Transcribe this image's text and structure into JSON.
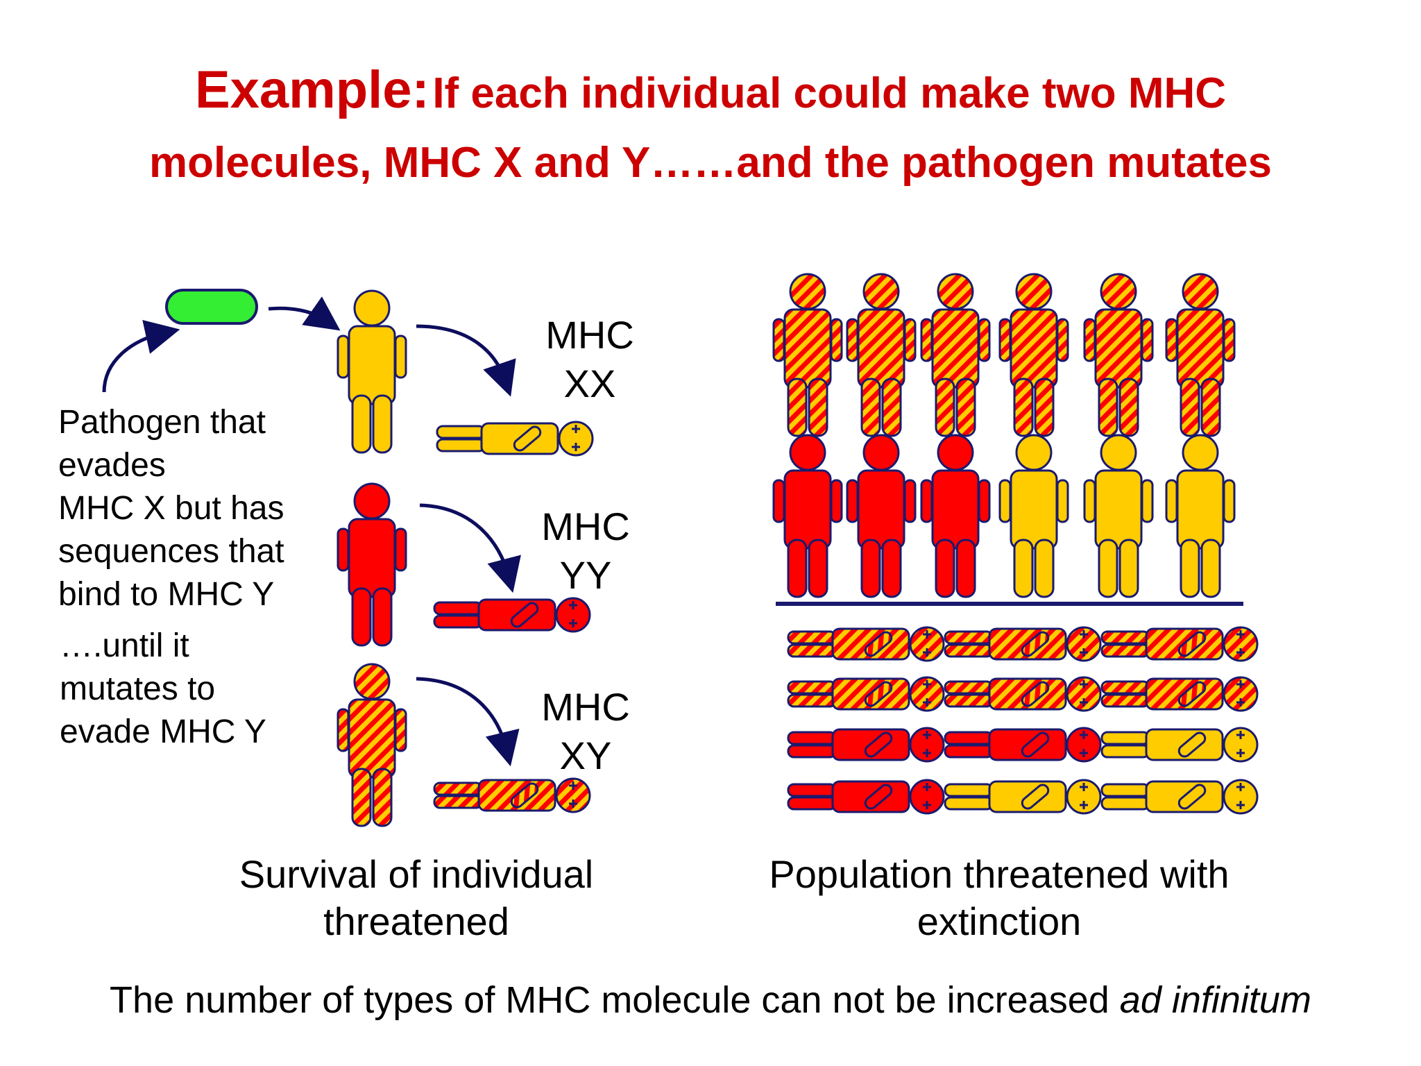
{
  "title": {
    "prefix": "Example:",
    "line1": "If each individual could make two MHC",
    "line2": "molecules, MHC X and Y……and the pathogen mutates"
  },
  "pathogen_description": [
    "Pathogen that",
    "evades",
    "MHC X but has",
    "sequences that",
    "bind to MHC Y"
  ],
  "until_text": [
    "….until it",
    "mutates to",
    "evade MHC Y"
  ],
  "mhc_labels": [
    {
      "line1": "MHC",
      "line2": "XX"
    },
    {
      "line1": "MHC",
      "line2": "YY"
    },
    {
      "line1": "MHC",
      "line2": "XY"
    }
  ],
  "captions": {
    "left": [
      "Survival of individual",
      "threatened"
    ],
    "right": [
      "Population threatened with",
      "extinction"
    ]
  },
  "footer": {
    "text": "The number of types of MHC molecule can not be increased ",
    "italic": "ad infinitum"
  },
  "colors": {
    "red": "#ff0000",
    "yellow": "#ffcc00",
    "outline": "#1a1a6e",
    "arrow": "#0d0d5e",
    "pathogen": "#33ee33",
    "title": "#cc0000"
  },
  "population": {
    "standing_rows": [
      [
        "XY",
        "XY",
        "XY",
        "XY",
        "XY",
        "XY"
      ],
      [
        "YY",
        "YY",
        "YY",
        "XX",
        "XX",
        "XX"
      ]
    ],
    "dead_rows": [
      [
        "XY",
        "XY",
        "XY"
      ],
      [
        "XY",
        "XY",
        "XY"
      ],
      [
        "YY",
        "YY",
        "XX"
      ],
      [
        "YY",
        "XX",
        "XX"
      ]
    ]
  }
}
